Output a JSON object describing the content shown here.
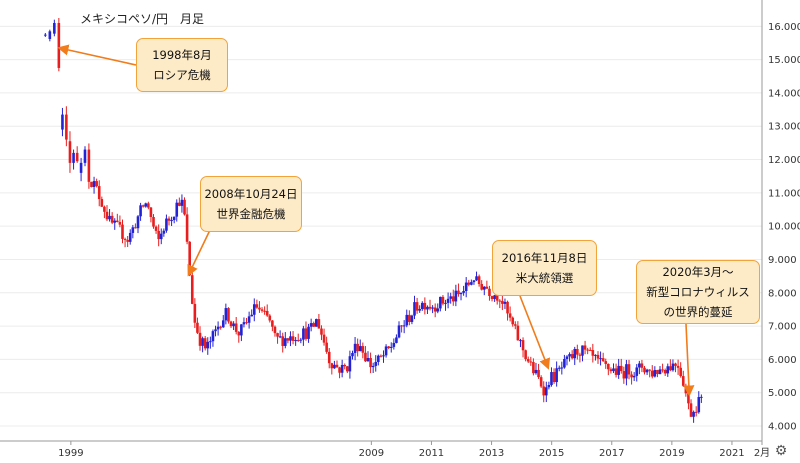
{
  "chart_data": {
    "type": "candlestick",
    "title": "メキシコペソ/円　月足",
    "ylim": [
      3.55,
      16.55
    ],
    "y_ticks": [
      "4.000",
      "5.000",
      "6.000",
      "7.000",
      "8.000",
      "9.000",
      "10.000",
      "11.000",
      "12.000",
      "13.000",
      "14.000",
      "15.000",
      "16.000"
    ],
    "x_ticks": [
      {
        "label": "1999",
        "x": 1999.0
      },
      {
        "label": "2009",
        "x": 2009.0
      },
      {
        "label": "2011",
        "x": 2011.0
      },
      {
        "label": "2013",
        "x": 2013.0
      },
      {
        "label": "2015",
        "x": 2015.0
      },
      {
        "label": "2017",
        "x": 2017.0
      },
      {
        "label": "2019",
        "x": 2019.0
      },
      {
        "label": "2021",
        "x": 2021.0
      },
      {
        "label": "2月",
        "x": 2022.0
      }
    ],
    "grid": "horizontal",
    "up_color": "#2323d6",
    "down_color": "#e81e1e",
    "early_candles": [
      {
        "x": 1998.15,
        "o": 15.72,
        "h": 15.8,
        "l": 15.68,
        "c": 15.75
      },
      {
        "x": 1998.3,
        "o": 15.62,
        "h": 15.9,
        "l": 15.55,
        "c": 15.85
      },
      {
        "x": 1998.45,
        "o": 15.78,
        "h": 16.2,
        "l": 15.7,
        "c": 16.1
      },
      {
        "x": 1998.6,
        "o": 16.1,
        "h": 16.25,
        "l": 14.65,
        "c": 14.75
      },
      {
        "x": 1998.72,
        "o": 12.9,
        "h": 13.55,
        "l": 12.7,
        "c": 13.35
      },
      {
        "x": 1998.85,
        "o": 13.35,
        "h": 13.6,
        "l": 12.4,
        "c": 12.6
      },
      {
        "x": 1998.97,
        "o": 12.55,
        "h": 12.85,
        "l": 11.6,
        "c": 11.9
      },
      {
        "x": 1999.09,
        "o": 11.9,
        "h": 12.3,
        "l": 11.7,
        "c": 12.2
      },
      {
        "x": 1999.21,
        "o": 12.2,
        "h": 12.4,
        "l": 11.9,
        "c": 11.95
      },
      {
        "x": 1999.34,
        "o": 11.6,
        "h": 12.05,
        "l": 11.35,
        "c": 11.9
      },
      {
        "x": 1999.47,
        "o": 11.9,
        "h": 12.4,
        "l": 11.8,
        "c": 12.3
      }
    ],
    "series_keypoints": [
      [
        1999.6,
        11.5
      ],
      [
        1999.8,
        11.2
      ],
      [
        2000.0,
        10.8
      ],
      [
        2000.3,
        10.1
      ],
      [
        2000.6,
        9.9
      ],
      [
        2000.9,
        9.6
      ],
      [
        2001.1,
        10.0
      ],
      [
        2001.4,
        10.6
      ],
      [
        2001.55,
        10.7
      ],
      [
        2001.7,
        10.1
      ],
      [
        2001.9,
        9.5
      ],
      [
        2002.1,
        10.0
      ],
      [
        2002.4,
        10.4
      ],
      [
        2002.6,
        10.8
      ],
      [
        2002.75,
        10.6
      ],
      [
        2002.85,
        9.6
      ],
      [
        2002.95,
        8.6
      ],
      [
        2003.1,
        7.2
      ],
      [
        2003.3,
        6.6
      ],
      [
        2003.5,
        6.3
      ],
      [
        2003.8,
        6.8
      ],
      [
        2004.0,
        7.2
      ],
      [
        2004.2,
        7.4
      ],
      [
        2004.4,
        7.0
      ],
      [
        2004.6,
        6.8
      ],
      [
        2004.8,
        7.0
      ],
      [
        2005.0,
        7.4
      ],
      [
        2005.2,
        7.6
      ],
      [
        2005.4,
        7.3
      ],
      [
        2005.6,
        7.2
      ],
      [
        2005.8,
        6.6
      ],
      [
        2006.0,
        6.6
      ],
      [
        2006.4,
        6.7
      ],
      [
        2006.8,
        6.8
      ],
      [
        2007.0,
        6.9
      ],
      [
        2007.2,
        7.2
      ],
      [
        2007.4,
        6.6
      ],
      [
        2007.6,
        6.0
      ],
      [
        2007.8,
        5.8
      ],
      [
        2008.0,
        5.7
      ],
      [
        2008.2,
        5.8
      ],
      [
        2008.4,
        6.3
      ],
      [
        2008.6,
        6.5
      ],
      [
        2008.8,
        6.1
      ],
      [
        2009.0,
        5.8
      ],
      [
        2009.3,
        6.0
      ],
      [
        2009.6,
        6.3
      ],
      [
        2009.9,
        6.8
      ],
      [
        2010.1,
        7.1
      ],
      [
        2010.2,
        7.2
      ],
      [
        2010.5,
        7.6
      ],
      [
        2010.8,
        7.7
      ],
      [
        2011.0,
        7.6
      ],
      [
        2011.3,
        7.7
      ],
      [
        2011.6,
        7.8
      ],
      [
        2011.9,
        7.9
      ],
      [
        2012.2,
        8.2
      ],
      [
        2012.4,
        8.5
      ],
      [
        2012.5,
        8.3
      ],
      [
        2012.8,
        8.2
      ],
      [
        2013.0,
        8.0
      ],
      [
        2013.3,
        7.9
      ],
      [
        2013.5,
        7.4
      ],
      [
        2013.7,
        7.0
      ],
      [
        2013.9,
        6.6
      ],
      [
        2014.1,
        6.2
      ],
      [
        2014.3,
        5.8
      ],
      [
        2014.5,
        5.5
      ],
      [
        2014.7,
        5.2
      ],
      [
        2014.8,
        5.0
      ],
      [
        2014.9,
        5.4
      ],
      [
        2015.1,
        5.5
      ],
      [
        2015.3,
        5.7
      ],
      [
        2015.5,
        5.9
      ],
      [
        2015.7,
        6.1
      ],
      [
        2015.9,
        6.3
      ],
      [
        2016.1,
        6.2
      ],
      [
        2016.4,
        6.0
      ],
      [
        2016.7,
        5.8
      ],
      [
        2017.0,
        5.7
      ],
      [
        2017.3,
        5.6
      ],
      [
        2017.6,
        5.7
      ],
      [
        2017.8,
        5.6
      ],
      [
        2018.0,
        5.8
      ],
      [
        2018.3,
        5.6
      ],
      [
        2018.6,
        5.7
      ],
      [
        2018.9,
        5.8
      ],
      [
        2019.2,
        5.9
      ],
      [
        2019.4,
        5.3
      ],
      [
        2019.55,
        4.6
      ],
      [
        2019.65,
        4.4
      ],
      [
        2019.8,
        4.6
      ],
      [
        2019.9,
        4.8
      ],
      [
        2020.0,
        4.7
      ]
    ],
    "annotations": [
      {
        "lines": [
          "1998年8月",
          "ロシア危機"
        ],
        "point_x": 1998.62,
        "point_y": 15.35
      },
      {
        "lines": [
          "2008年10月24日",
          "世界金融危機"
        ],
        "point_x": 2002.92,
        "point_y": 8.55
      },
      {
        "lines": [
          "2016年11月8日",
          "米大統領選"
        ],
        "point_x": 2014.88,
        "point_y": 5.75
      },
      {
        "lines": [
          "2020年3月～",
          "新型コロナウィルス",
          "の世界的蔓延"
        ],
        "point_x": 2019.58,
        "point_y": 4.95
      }
    ]
  },
  "settings_icon": "gear-icon"
}
